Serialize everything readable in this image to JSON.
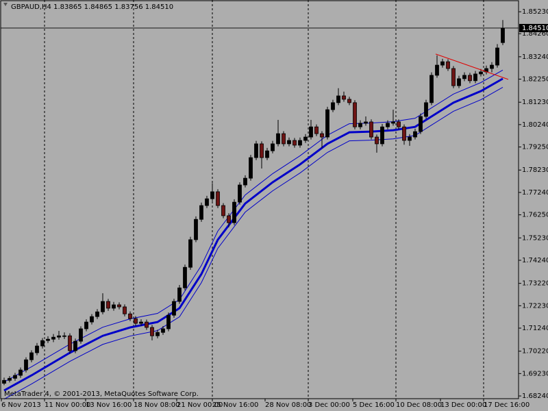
{
  "chart_data": {
    "type": "candlestick",
    "symbol": "GBPAUD,H4",
    "footer": "MetaTrader 4, © 2001-2013, MetaQuotes Software Corp.",
    "background": "#adadad",
    "up_color": "#000000",
    "down_color": "#6e1414",
    "grid": true,
    "ylim": [
      1.6812,
      1.8575
    ],
    "yticks": [
      {
        "value": 1.8523,
        "label": "1.85230"
      },
      {
        "value": 1.8426,
        "label": "1.84260"
      },
      {
        "value": 1.8324,
        "label": "1.83240"
      },
      {
        "value": 1.8225,
        "label": "1.82250"
      },
      {
        "value": 1.8123,
        "label": "1.81230"
      },
      {
        "value": 1.8024,
        "label": "1.80240"
      },
      {
        "value": 1.7925,
        "label": "1.79250"
      },
      {
        "value": 1.7823,
        "label": "1.78230"
      },
      {
        "value": 1.7724,
        "label": "1.77240"
      },
      {
        "value": 1.7625,
        "label": "1.76250"
      },
      {
        "value": 1.7523,
        "label": "1.75230"
      },
      {
        "value": 1.7424,
        "label": "1.74240"
      },
      {
        "value": 1.7322,
        "label": "1.73220"
      },
      {
        "value": 1.7223,
        "label": "1.72230"
      },
      {
        "value": 1.7124,
        "label": "1.71240"
      },
      {
        "value": 1.7022,
        "label": "1.70220"
      },
      {
        "value": 1.6923,
        "label": "1.69230"
      },
      {
        "value": 1.6824,
        "label": "1.68240"
      }
    ],
    "xticks": [
      {
        "value": -0.5,
        "label": "6 Nov 2013"
      },
      {
        "value": 7.375,
        "label": "11 Nov 00:00"
      },
      {
        "value": 14.875,
        "label": "13 Nov 16:00"
      },
      {
        "value": 23.625,
        "label": "18 Nov 08:00"
      },
      {
        "value": 31.5,
        "label": "21 Nov 00:00"
      },
      {
        "value": 38,
        "label": "25 Nov 16:00"
      },
      {
        "value": 47.625,
        "label": "28 Nov 08:00"
      },
      {
        "value": 55.5,
        "label": "3 Dec 00:00"
      },
      {
        "value": 63.625,
        "label": "5 Dec 16:00"
      },
      {
        "value": 71.5,
        "label": "10 Dec 08:00"
      },
      {
        "value": 79.625,
        "label": "13 Dec 00:00"
      },
      {
        "value": 87.5,
        "label": "17 Dec 16:00"
      }
    ],
    "last_close_label": "1.84510",
    "ohlc": [
      [
        1.688,
        1.6905,
        1.6872,
        1.6893
      ],
      [
        1.6893,
        1.6912,
        1.6884,
        1.6902
      ],
      [
        1.6902,
        1.6926,
        1.6891,
        1.6915
      ],
      [
        1.6915,
        1.695,
        1.6904,
        1.6939
      ],
      [
        1.6939,
        1.6995,
        1.6928,
        1.6984
      ],
      [
        1.6984,
        1.7026,
        1.6973,
        1.7015
      ],
      [
        1.7015,
        1.7058,
        1.7004,
        1.7045
      ],
      [
        1.7045,
        1.708,
        1.7034,
        1.7069
      ],
      [
        1.7069,
        1.7088,
        1.7058,
        1.7075
      ],
      [
        1.7075,
        1.7098,
        1.7062,
        1.7084
      ],
      [
        1.7084,
        1.7112,
        1.7073,
        1.709
      ],
      [
        1.709,
        1.7105,
        1.7076,
        1.709
      ],
      [
        1.709,
        1.7101,
        1.701,
        1.7024
      ],
      [
        1.7024,
        1.7078,
        1.7013,
        1.7066
      ],
      [
        1.7066,
        1.7132,
        1.7055,
        1.7121
      ],
      [
        1.7121,
        1.7163,
        1.711,
        1.7151
      ],
      [
        1.7151,
        1.7186,
        1.714,
        1.7175
      ],
      [
        1.7175,
        1.7208,
        1.7164,
        1.7196
      ],
      [
        1.7196,
        1.7278,
        1.7185,
        1.7242
      ],
      [
        1.7242,
        1.7253,
        1.72,
        1.7212
      ],
      [
        1.7212,
        1.724,
        1.7201,
        1.7227
      ],
      [
        1.7227,
        1.7238,
        1.7207,
        1.7218
      ],
      [
        1.7218,
        1.7229,
        1.7176,
        1.7187
      ],
      [
        1.7187,
        1.7198,
        1.7155,
        1.7166
      ],
      [
        1.7166,
        1.7177,
        1.7134,
        1.7145
      ],
      [
        1.7145,
        1.7163,
        1.7134,
        1.7151
      ],
      [
        1.7151,
        1.7162,
        1.7116,
        1.7127
      ],
      [
        1.7127,
        1.7138,
        1.707,
        1.709
      ],
      [
        1.709,
        1.7117,
        1.7079,
        1.7105
      ],
      [
        1.7105,
        1.7133,
        1.7094,
        1.7121
      ],
      [
        1.7121,
        1.7193,
        1.711,
        1.7181
      ],
      [
        1.7181,
        1.7254,
        1.717,
        1.7242
      ],
      [
        1.7242,
        1.7315,
        1.7231,
        1.7302
      ],
      [
        1.7302,
        1.7405,
        1.7291,
        1.7393
      ],
      [
        1.7393,
        1.7528,
        1.7382,
        1.7515
      ],
      [
        1.7515,
        1.7618,
        1.7504,
        1.7605
      ],
      [
        1.7605,
        1.7679,
        1.7594,
        1.7666
      ],
      [
        1.7666,
        1.7709,
        1.7655,
        1.7696
      ],
      [
        1.7696,
        1.7765,
        1.7685,
        1.7727
      ],
      [
        1.7727,
        1.7738,
        1.7655,
        1.7666
      ],
      [
        1.7666,
        1.7677,
        1.761,
        1.7621
      ],
      [
        1.7621,
        1.7632,
        1.757,
        1.759
      ],
      [
        1.759,
        1.7694,
        1.7579,
        1.7681
      ],
      [
        1.7681,
        1.7769,
        1.767,
        1.7757
      ],
      [
        1.7757,
        1.78,
        1.7746,
        1.7787
      ],
      [
        1.7787,
        1.789,
        1.7776,
        1.7878
      ],
      [
        1.7878,
        1.7952,
        1.7867,
        1.7939
      ],
      [
        1.7939,
        1.795,
        1.783,
        1.7878
      ],
      [
        1.7878,
        1.7921,
        1.7867,
        1.7908
      ],
      [
        1.7908,
        1.7952,
        1.7897,
        1.7939
      ],
      [
        1.7939,
        1.8045,
        1.7928,
        1.7984
      ],
      [
        1.7984,
        1.7995,
        1.7928,
        1.7939
      ],
      [
        1.7939,
        1.7967,
        1.7928,
        1.7954
      ],
      [
        1.7954,
        1.7965,
        1.7922,
        1.7933
      ],
      [
        1.7933,
        1.7967,
        1.7922,
        1.7954
      ],
      [
        1.7954,
        1.7982,
        1.7943,
        1.7969
      ],
      [
        1.7969,
        1.8045,
        1.7958,
        1.8014
      ],
      [
        1.8014,
        1.8025,
        1.7973,
        1.7984
      ],
      [
        1.7984,
        1.7995,
        1.792,
        1.7969
      ],
      [
        1.7969,
        1.8103,
        1.7958,
        1.809
      ],
      [
        1.809,
        1.8134,
        1.8079,
        1.8121
      ],
      [
        1.8121,
        1.8185,
        1.811,
        1.8151
      ],
      [
        1.8151,
        1.817,
        1.8125,
        1.8136
      ],
      [
        1.8136,
        1.8147,
        1.811,
        1.8121
      ],
      [
        1.8121,
        1.8132,
        1.8003,
        1.8014
      ],
      [
        1.8014,
        1.8043,
        1.8003,
        1.803
      ],
      [
        1.803,
        1.806,
        1.8019,
        1.8036
      ],
      [
        1.8036,
        1.8047,
        1.7958,
        1.7969
      ],
      [
        1.7969,
        1.798,
        1.79,
        1.7939
      ],
      [
        1.7939,
        1.8027,
        1.7928,
        1.8014
      ],
      [
        1.8014,
        1.8043,
        1.8003,
        1.803
      ],
      [
        1.803,
        1.809,
        1.8019,
        1.8036
      ],
      [
        1.8036,
        1.8047,
        1.8003,
        1.8014
      ],
      [
        1.8014,
        1.8025,
        1.7935,
        1.7954
      ],
      [
        1.7954,
        1.7982,
        1.793,
        1.7969
      ],
      [
        1.7969,
        1.8006,
        1.7958,
        1.7993
      ],
      [
        1.7993,
        1.8073,
        1.7982,
        1.806
      ],
      [
        1.806,
        1.8134,
        1.8049,
        1.8121
      ],
      [
        1.8121,
        1.8255,
        1.811,
        1.8242
      ],
      [
        1.8242,
        1.833,
        1.8231,
        1.8287
      ],
      [
        1.8287,
        1.8315,
        1.8276,
        1.8302
      ],
      [
        1.8302,
        1.8313,
        1.8261,
        1.8272
      ],
      [
        1.8272,
        1.8283,
        1.8185,
        1.8196
      ],
      [
        1.8196,
        1.824,
        1.8185,
        1.8227
      ],
      [
        1.8227,
        1.8255,
        1.8216,
        1.8242
      ],
      [
        1.8242,
        1.8253,
        1.8207,
        1.8218
      ],
      [
        1.8218,
        1.8261,
        1.8207,
        1.8248
      ],
      [
        1.8248,
        1.827,
        1.8237,
        1.8257
      ],
      [
        1.8257,
        1.8285,
        1.8246,
        1.8272
      ],
      [
        1.8272,
        1.83,
        1.8255,
        1.8287
      ],
      [
        1.8287,
        1.838,
        1.8276,
        1.8363
      ],
      [
        1.83865,
        1.84865,
        1.83756,
        1.8451
      ]
    ],
    "indicators": [
      {
        "color": "#0000c8",
        "width": 3,
        "x": [
          0,
          5,
          12,
          18,
          23,
          28,
          32,
          36,
          39,
          44,
          49,
          54,
          59,
          63,
          67,
          71,
          75,
          78,
          82,
          87,
          91
        ],
        "values": [
          1.6848,
          1.6915,
          1.7015,
          1.709,
          1.7127,
          1.7151,
          1.7212,
          1.7363,
          1.7515,
          1.7675,
          1.7769,
          1.7848,
          1.7939,
          1.799,
          1.7993,
          1.7999,
          1.8014,
          1.806,
          1.8121,
          1.8172,
          1.8227
        ]
      },
      {
        "color": "#0000c8",
        "width": 1,
        "x": [
          0,
          5,
          12,
          18,
          23,
          28,
          32,
          36,
          39,
          44,
          49,
          54,
          59,
          63,
          67,
          71,
          75,
          78,
          82,
          87,
          91
        ],
        "values": [
          1.6886,
          1.6953,
          1.7053,
          1.7128,
          1.7165,
          1.7189,
          1.725,
          1.7401,
          1.7553,
          1.7713,
          1.7807,
          1.7886,
          1.7977,
          1.8028,
          1.8031,
          1.8037,
          1.8052,
          1.8098,
          1.8159,
          1.821,
          1.8265
        ]
      },
      {
        "color": "#0000c8",
        "width": 1,
        "x": [
          0,
          5,
          12,
          18,
          23,
          28,
          32,
          36,
          39,
          44,
          49,
          54,
          59,
          63,
          67,
          71,
          75,
          78,
          82,
          87,
          91
        ],
        "values": [
          1.681,
          1.6877,
          1.6977,
          1.7052,
          1.7089,
          1.7113,
          1.7174,
          1.7325,
          1.7477,
          1.7637,
          1.7731,
          1.781,
          1.7901,
          1.7952,
          1.7955,
          1.7961,
          1.7976,
          1.8022,
          1.8083,
          1.8134,
          1.8189
        ]
      }
    ],
    "trendline": {
      "color": "#e00000",
      "x": [
        78.75,
        92
      ],
      "values": [
        1.8336,
        1.8224
      ]
    }
  }
}
